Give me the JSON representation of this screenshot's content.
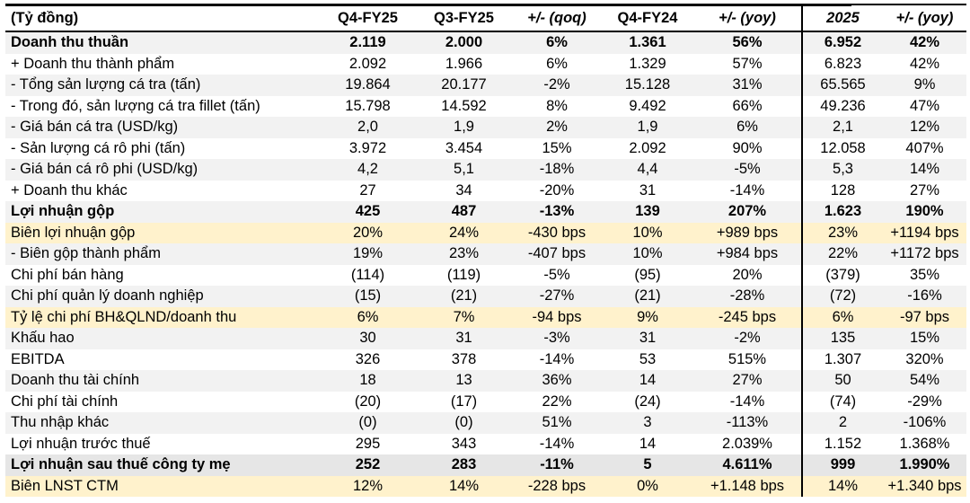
{
  "table": {
    "headers": [
      "(Tỷ đồng)",
      "Q4-FY25",
      "Q3-FY25",
      "+/- (qoq)",
      "Q4-FY24",
      "+/- (yoy)",
      "2025",
      "+/- (yoy)"
    ],
    "colors": {
      "gray_row": "#f2f2f2",
      "highlight_row": "#fff2cc",
      "total_row": "#e6e6e6"
    },
    "rows": [
      {
        "style": "g b",
        "cells": [
          "Doanh thu thuần",
          "2.119",
          "2.000",
          "6%",
          "1.361",
          "56%",
          "6.952",
          "42%"
        ]
      },
      {
        "style": "w",
        "cells": [
          "+ Doanh thu thành phẩm",
          "2.092",
          "1.966",
          "6%",
          "1.329",
          "57%",
          "6.823",
          "42%"
        ]
      },
      {
        "style": "g",
        "cells": [
          "- Tổng sản lượng cá tra (tấn)",
          "19.864",
          "20.177",
          "-2%",
          "15.128",
          "31%",
          "65.565",
          "9%"
        ]
      },
      {
        "style": "w",
        "cells": [
          "- Trong đó, sản lượng cá tra fillet (tấn)",
          "15.798",
          "14.592",
          "8%",
          "9.492",
          "66%",
          "49.236",
          "47%"
        ]
      },
      {
        "style": "g",
        "cells": [
          "- Giá bán cá tra (USD/kg)",
          "2,0",
          "1,9",
          "2%",
          "1,9",
          "6%",
          "2,1",
          "12%"
        ]
      },
      {
        "style": "w",
        "cells": [
          "- Sản lượng cá rô phi (tấn)",
          "3.972",
          "3.454",
          "15%",
          "2.092",
          "90%",
          "12.058",
          "407%"
        ]
      },
      {
        "style": "g",
        "cells": [
          "- Giá bán cá rô phi (USD/kg)",
          "4,2",
          "5,1",
          "-18%",
          "4,4",
          "-5%",
          "5,3",
          "14%"
        ]
      },
      {
        "style": "w",
        "cells": [
          "+ Doanh thu khác",
          "27",
          "34",
          "-20%",
          "31",
          "-14%",
          "128",
          "27%"
        ]
      },
      {
        "style": "g b",
        "cells": [
          "Lợi nhuận gộp",
          "425",
          "487",
          "-13%",
          "139",
          "207%",
          "1.623",
          "190%"
        ]
      },
      {
        "style": "y",
        "cells": [
          "Biên lợi nhuận gộp",
          "20%",
          "24%",
          "-430 bps",
          "10%",
          "+989 bps",
          "23%",
          "+1194 bps"
        ]
      },
      {
        "style": "g",
        "cells": [
          "- Biên gộp thành phẩm",
          "19%",
          "23%",
          "-407 bps",
          "10%",
          "+984 bps",
          "22%",
          "+1172 bps"
        ]
      },
      {
        "style": "w",
        "cells": [
          "Chi phí bán hàng",
          "(114)",
          "(119)",
          "-5%",
          "(95)",
          "20%",
          "(379)",
          "35%"
        ]
      },
      {
        "style": "g",
        "cells": [
          "Chi phí quản lý doanh  nghiệp",
          "(15)",
          "(21)",
          "-27%",
          "(21)",
          "-28%",
          "(72)",
          "-16%"
        ]
      },
      {
        "style": "y",
        "cells": [
          "Tỷ lệ chi phí BH&QLND/doanh thu",
          "6%",
          "7%",
          "-94 bps",
          "9%",
          "-245 bps",
          "6%",
          "-97 bps"
        ]
      },
      {
        "style": "g",
        "cells": [
          "Khấu hao",
          "30",
          "31",
          "-3%",
          "31",
          "-2%",
          "135",
          "15%"
        ]
      },
      {
        "style": "w",
        "cells": [
          "EBITDA",
          "326",
          "378",
          "-14%",
          "53",
          "515%",
          "1.307",
          "320%"
        ]
      },
      {
        "style": "g",
        "cells": [
          "Doanh thu tài chính",
          "18",
          "13",
          "36%",
          "14",
          "27%",
          "50",
          "54%"
        ]
      },
      {
        "style": "w",
        "cells": [
          "Chi phí tài chính",
          "(20)",
          "(17)",
          "22%",
          "(24)",
          "-14%",
          "(74)",
          "-29%"
        ]
      },
      {
        "style": "g",
        "cells": [
          "Thu nhập khác",
          "(0)",
          "(0)",
          "51%",
          "3",
          "-113%",
          "2",
          "-106%"
        ]
      },
      {
        "style": "w",
        "cells": [
          "Lợi nhuận trước thuế",
          "295",
          "343",
          "-14%",
          "14",
          "2.039%",
          "1.152",
          "1.368%"
        ]
      },
      {
        "style": "d b",
        "cells": [
          "Lợi nhuận sau thuế công ty mẹ",
          "252",
          "283",
          "-11%",
          "5",
          "4.611%",
          "999",
          "1.990%"
        ]
      },
      {
        "style": "y",
        "cells": [
          "Biên LNST CTM",
          "12%",
          "14%",
          "-228 bps",
          "0%",
          "+1.148 bps",
          "14%",
          "+1.340 bps"
        ]
      }
    ]
  }
}
